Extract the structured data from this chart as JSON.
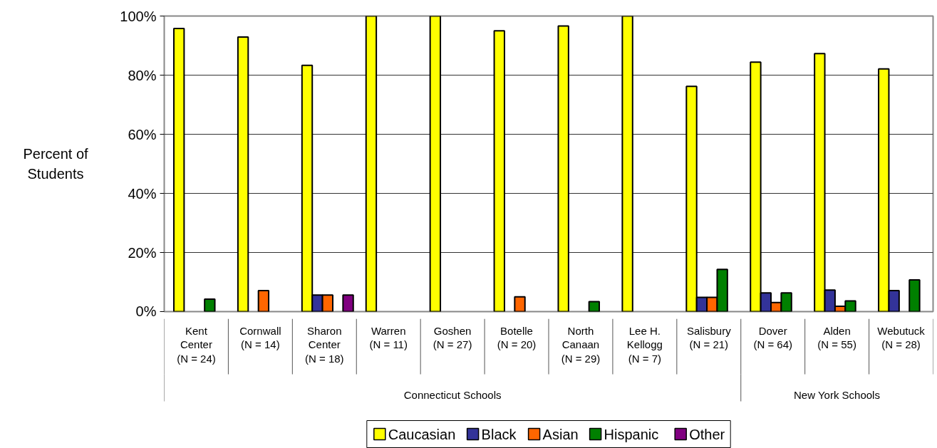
{
  "chart_data": {
    "type": "bar",
    "ylabel": "Percent of\nStudents",
    "categories": [
      "Kent\nCenter\n(N = 24)",
      "Cornwall\n(N = 14)",
      "Sharon\nCenter\n(N = 18)",
      "Warren\n(N = 11)",
      "Goshen\n(N = 27)",
      "Botelle\n(N = 20)",
      "North\nCanaan\n(N = 29)",
      "Lee H.\nKellogg\n(N = 7)",
      "Salisbury\n(N = 21)",
      "Dover\n(N = 64)",
      "Alden\n(N = 55)",
      "Webutuck\n(N = 28)"
    ],
    "series": [
      {
        "name": "Caucasian",
        "color": "#ffff00",
        "values": [
          95.8,
          92.9,
          83.3,
          100,
          100,
          95,
          96.6,
          100,
          76.2,
          84.4,
          87.3,
          82.1
        ]
      },
      {
        "name": "Black",
        "color": "#333399",
        "values": [
          0,
          0,
          5.6,
          0,
          0,
          0,
          0,
          0,
          4.8,
          6.3,
          7.3,
          7.1
        ]
      },
      {
        "name": "Asian",
        "color": "#ff6600",
        "values": [
          0,
          7.1,
          5.6,
          0,
          0,
          5,
          0,
          0,
          4.8,
          3.1,
          1.8,
          0
        ]
      },
      {
        "name": "Hispanic",
        "color": "#008000",
        "values": [
          4.2,
          0,
          0,
          0,
          0,
          0,
          3.4,
          0,
          14.3,
          6.3,
          3.6,
          10.7
        ]
      },
      {
        "name": "Other",
        "color": "#800080",
        "values": [
          0,
          0,
          5.6,
          0,
          0,
          0,
          0,
          0,
          0,
          0,
          0,
          0
        ]
      }
    ],
    "annotations": [
      "Connecticut Schools",
      "New York Schools"
    ],
    "ylim": [
      0,
      100
    ],
    "yticks": [
      {
        "value": 0,
        "label": "0%"
      },
      {
        "value": 20,
        "label": "20%"
      },
      {
        "value": 40,
        "label": "40%"
      },
      {
        "value": 60,
        "label": "60%"
      },
      {
        "value": 80,
        "label": "80%"
      },
      {
        "value": 100,
        "label": "100%"
      }
    ],
    "grid": "y",
    "legend": "bottom"
  }
}
